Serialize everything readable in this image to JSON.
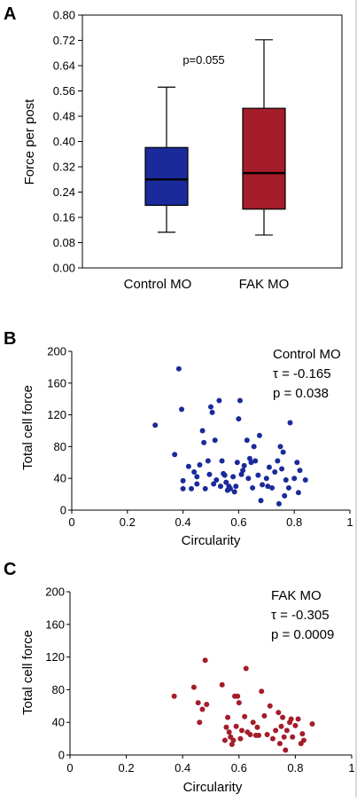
{
  "chart_data": [
    {
      "panel": "A",
      "type": "box",
      "ylabel": "Force per post",
      "ylim": [
        0,
        0.8
      ],
      "yticks": [
        "0.00",
        "0.08",
        "0.16",
        "0.24",
        "0.32",
        "0.40",
        "0.48",
        "0.56",
        "0.64",
        "0.72",
        "0.80"
      ],
      "categories": [
        "Control MO",
        "FAK MO"
      ],
      "annotation": "p=0.055",
      "colors": [
        "#1a2a9a",
        "#a51c2a"
      ],
      "boxes": [
        {
          "min": 0.113,
          "q1": 0.198,
          "median": 0.28,
          "q3": 0.381,
          "max": 0.572
        },
        {
          "min": 0.104,
          "q1": 0.186,
          "median": 0.3,
          "q3": 0.505,
          "max": 0.722
        }
      ]
    },
    {
      "panel": "B",
      "type": "scatter",
      "xlabel": "Circularity",
      "ylabel": "Total cell force",
      "xlim": [
        0,
        1
      ],
      "ylim": [
        0,
        200
      ],
      "xticks": [
        "0",
        "0.2",
        "0.4",
        "0.6",
        "0.8",
        "1"
      ],
      "yticks": [
        "0",
        "40",
        "80",
        "120",
        "160",
        "200"
      ],
      "legend_lines": [
        "Control MO",
        "τ = -0.165",
        "p = 0.038"
      ],
      "color": "#1a2a9a",
      "points": [
        [
          0.3,
          107
        ],
        [
          0.37,
          70
        ],
        [
          0.385,
          178
        ],
        [
          0.395,
          127
        ],
        [
          0.4,
          37
        ],
        [
          0.4,
          27
        ],
        [
          0.42,
          55
        ],
        [
          0.43,
          27
        ],
        [
          0.44,
          48
        ],
        [
          0.45,
          42
        ],
        [
          0.45,
          33
        ],
        [
          0.46,
          57
        ],
        [
          0.47,
          100
        ],
        [
          0.475,
          85
        ],
        [
          0.48,
          27
        ],
        [
          0.49,
          62
        ],
        [
          0.495,
          45
        ],
        [
          0.5,
          130
        ],
        [
          0.505,
          123
        ],
        [
          0.51,
          33
        ],
        [
          0.515,
          88
        ],
        [
          0.52,
          38
        ],
        [
          0.53,
          138
        ],
        [
          0.535,
          30
        ],
        [
          0.54,
          62
        ],
        [
          0.545,
          46
        ],
        [
          0.55,
          44
        ],
        [
          0.555,
          35
        ],
        [
          0.56,
          25
        ],
        [
          0.565,
          30
        ],
        [
          0.57,
          27
        ],
        [
          0.58,
          42
        ],
        [
          0.585,
          23
        ],
        [
          0.59,
          30
        ],
        [
          0.595,
          60
        ],
        [
          0.6,
          115
        ],
        [
          0.605,
          138
        ],
        [
          0.61,
          45
        ],
        [
          0.615,
          50
        ],
        [
          0.62,
          56
        ],
        [
          0.63,
          88
        ],
        [
          0.635,
          40
        ],
        [
          0.64,
          65
        ],
        [
          0.645,
          60
        ],
        [
          0.65,
          28
        ],
        [
          0.655,
          80
        ],
        [
          0.66,
          62
        ],
        [
          0.67,
          44
        ],
        [
          0.675,
          94
        ],
        [
          0.68,
          12
        ],
        [
          0.685,
          32
        ],
        [
          0.7,
          40
        ],
        [
          0.705,
          30
        ],
        [
          0.71,
          54
        ],
        [
          0.72,
          28
        ],
        [
          0.73,
          48
        ],
        [
          0.74,
          62
        ],
        [
          0.745,
          8
        ],
        [
          0.75,
          80
        ],
        [
          0.755,
          52
        ],
        [
          0.76,
          73
        ],
        [
          0.765,
          18
        ],
        [
          0.77,
          38
        ],
        [
          0.78,
          28
        ],
        [
          0.785,
          110
        ],
        [
          0.8,
          40
        ],
        [
          0.81,
          60
        ],
        [
          0.815,
          22
        ],
        [
          0.82,
          50
        ],
        [
          0.84,
          38
        ]
      ]
    },
    {
      "panel": "C",
      "type": "scatter",
      "xlabel": "Circularity",
      "ylabel": "Total cell force",
      "xlim": [
        0,
        1
      ],
      "ylim": [
        0,
        200
      ],
      "xticks": [
        "0",
        "0.2",
        "0.4",
        "0.6",
        "0.8",
        "1"
      ],
      "yticks": [
        "0",
        "40",
        "80",
        "120",
        "160",
        "200"
      ],
      "legend_lines": [
        "FAK MO",
        "τ = -0.305",
        "p = 0.0009"
      ],
      "color": "#a51c2a",
      "points": [
        [
          0.37,
          72
        ],
        [
          0.44,
          83
        ],
        [
          0.455,
          64
        ],
        [
          0.46,
          40
        ],
        [
          0.47,
          56
        ],
        [
          0.48,
          116
        ],
        [
          0.485,
          62
        ],
        [
          0.54,
          86
        ],
        [
          0.55,
          18
        ],
        [
          0.555,
          34
        ],
        [
          0.56,
          46
        ],
        [
          0.565,
          28
        ],
        [
          0.57,
          22
        ],
        [
          0.575,
          13
        ],
        [
          0.58,
          18
        ],
        [
          0.585,
          72
        ],
        [
          0.59,
          35
        ],
        [
          0.595,
          72
        ],
        [
          0.6,
          64
        ],
        [
          0.605,
          20
        ],
        [
          0.61,
          30
        ],
        [
          0.62,
          47
        ],
        [
          0.625,
          106
        ],
        [
          0.63,
          28
        ],
        [
          0.64,
          25
        ],
        [
          0.65,
          40
        ],
        [
          0.66,
          24
        ],
        [
          0.665,
          34
        ],
        [
          0.67,
          24
        ],
        [
          0.68,
          78
        ],
        [
          0.69,
          48
        ],
        [
          0.7,
          25
        ],
        [
          0.71,
          60
        ],
        [
          0.72,
          20
        ],
        [
          0.73,
          30
        ],
        [
          0.74,
          52
        ],
        [
          0.745,
          14
        ],
        [
          0.75,
          35
        ],
        [
          0.755,
          46
        ],
        [
          0.76,
          22
        ],
        [
          0.765,
          6
        ],
        [
          0.77,
          30
        ],
        [
          0.78,
          40
        ],
        [
          0.785,
          44
        ],
        [
          0.79,
          22
        ],
        [
          0.8,
          36
        ],
        [
          0.81,
          44
        ],
        [
          0.82,
          14
        ],
        [
          0.825,
          26
        ],
        [
          0.83,
          18
        ],
        [
          0.86,
          38
        ]
      ]
    }
  ],
  "panel_letters": [
    "A",
    "B",
    "C"
  ]
}
